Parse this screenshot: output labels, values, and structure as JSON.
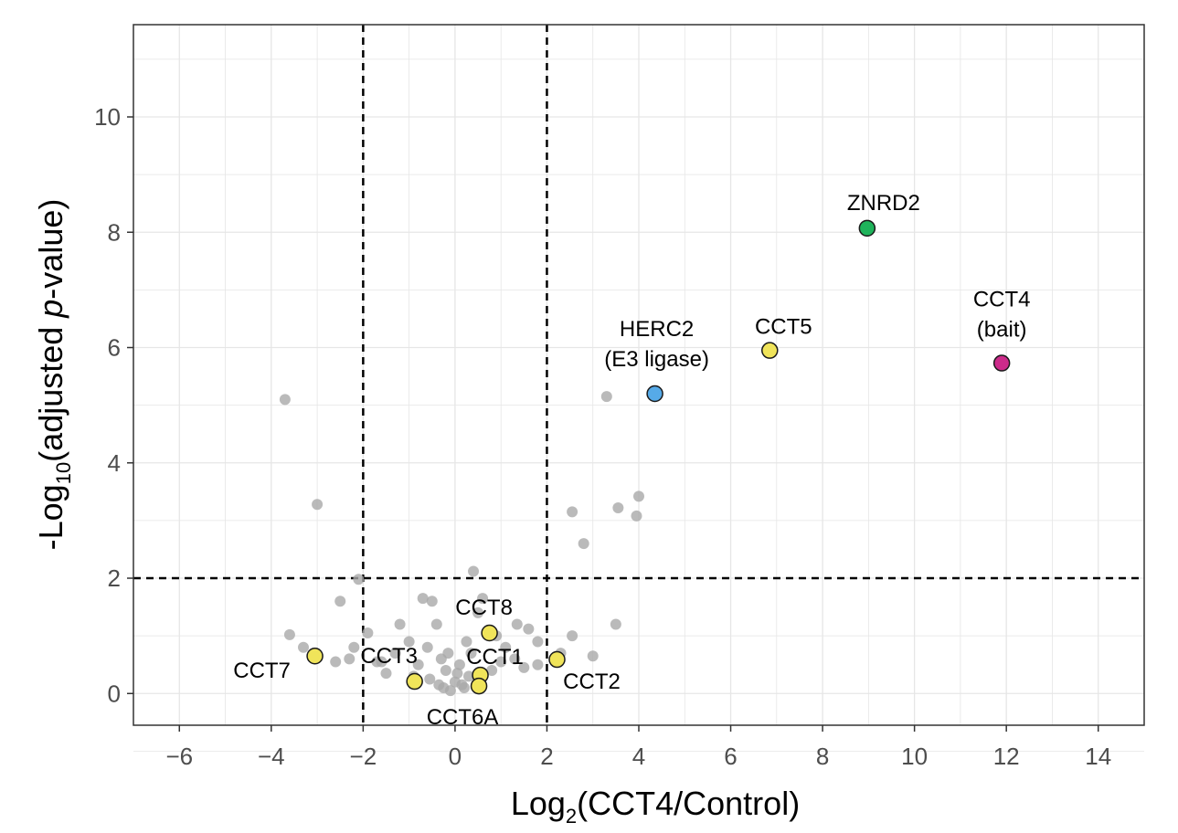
{
  "chart_data": {
    "type": "scatter",
    "title": "",
    "xlabel": {
      "main": "Log",
      "sub": "2",
      "rest": "(CCT4/Control)"
    },
    "ylabel": {
      "pre": "-Log",
      "sub": "10",
      "mid": "(adjusted ",
      "italic": "p",
      "post": "-value)"
    },
    "xlim": [
      -7,
      15
    ],
    "ylim": [
      -0.55,
      11.6
    ],
    "x_ticks": [
      -6,
      -4,
      -2,
      0,
      2,
      4,
      6,
      8,
      10,
      12,
      14
    ],
    "x_tick_labels": [
      "−6",
      "−4",
      "−2",
      "0",
      "2",
      "4",
      "6",
      "8",
      "10",
      "12",
      "14"
    ],
    "y_ticks": [
      0,
      2,
      4,
      6,
      8,
      10
    ],
    "y_tick_labels": [
      "0",
      "2",
      "4",
      "6",
      "8",
      "10"
    ],
    "grid": true,
    "thresholds": {
      "x": [
        -2,
        2
      ],
      "y": [
        2
      ]
    },
    "background_points": [
      [
        -3.7,
        5.1
      ],
      [
        -3.0,
        3.28
      ],
      [
        -2.1,
        1.98
      ],
      [
        -2.5,
        1.6
      ],
      [
        -3.6,
        1.02
      ],
      [
        -3.3,
        0.8
      ],
      [
        -2.2,
        0.8
      ],
      [
        -2.3,
        0.6
      ],
      [
        -1.9,
        1.05
      ],
      [
        -1.7,
        0.55
      ],
      [
        -1.5,
        0.35
      ],
      [
        -1.2,
        1.2
      ],
      [
        -1.0,
        0.9
      ],
      [
        -0.8,
        0.5
      ],
      [
        -0.7,
        1.65
      ],
      [
        -0.5,
        1.6
      ],
      [
        -0.4,
        1.2
      ],
      [
        -0.6,
        0.8
      ],
      [
        -0.3,
        0.6
      ],
      [
        -0.2,
        0.4
      ],
      [
        0.0,
        0.2
      ],
      [
        0.2,
        0.1
      ],
      [
        0.1,
        0.5
      ],
      [
        0.3,
        0.3
      ],
      [
        -0.1,
        0.05
      ],
      [
        0.4,
        2.12
      ],
      [
        0.6,
        1.65
      ],
      [
        0.5,
        1.4
      ],
      [
        0.9,
        1.0
      ],
      [
        1.1,
        0.8
      ],
      [
        1.35,
        1.2
      ],
      [
        1.6,
        1.12
      ],
      [
        1.3,
        0.6
      ],
      [
        1.8,
        0.9
      ],
      [
        1.8,
        0.5
      ],
      [
        1.0,
        0.55
      ],
      [
        0.8,
        0.4
      ],
      [
        -1.3,
        0.7
      ],
      [
        -0.9,
        0.3
      ],
      [
        0.25,
        0.9
      ],
      [
        2.55,
        1.0
      ],
      [
        2.55,
        3.15
      ],
      [
        2.8,
        2.6
      ],
      [
        3.3,
        5.15
      ],
      [
        3.5,
        1.2
      ],
      [
        3.55,
        3.22
      ],
      [
        3.95,
        3.08
      ],
      [
        4.0,
        3.42
      ],
      [
        3.0,
        0.65
      ],
      [
        2.3,
        0.7
      ],
      [
        -0.35,
        0.15
      ],
      [
        0.05,
        0.35
      ],
      [
        -0.15,
        0.7
      ],
      [
        0.35,
        0.7
      ],
      [
        -0.55,
        0.25
      ],
      [
        0.15,
        0.15
      ],
      [
        -0.25,
        0.1
      ],
      [
        1.5,
        0.45
      ],
      [
        -1.6,
        0.55
      ],
      [
        -2.6,
        0.55
      ]
    ],
    "highlight_points": [
      {
        "name": "CCT8",
        "x": 0.75,
        "y": 1.05,
        "color": "#f0e45a"
      },
      {
        "name": "CCT1",
        "x": 0.55,
        "y": 0.32,
        "color": "#f0e45a"
      },
      {
        "name": "CCT6A",
        "x": 0.52,
        "y": 0.13,
        "color": "#f0e45a"
      },
      {
        "name": "CCT3",
        "x": -0.88,
        "y": 0.21,
        "color": "#f0e45a"
      },
      {
        "name": "CCT7",
        "x": -3.05,
        "y": 0.65,
        "color": "#f0e45a"
      },
      {
        "name": "CCT2",
        "x": 2.22,
        "y": 0.59,
        "color": "#f0e45a"
      },
      {
        "name": "HERC2",
        "sublabel": "(E3 ligase)",
        "x": 4.35,
        "y": 5.2,
        "color": "#56aae8"
      },
      {
        "name": "CCT5",
        "x": 6.85,
        "y": 5.95,
        "color": "#f0e45a"
      },
      {
        "name": "ZNRD2",
        "x": 8.97,
        "y": 8.07,
        "color": "#1fb35b"
      },
      {
        "name": "CCT4",
        "sublabel": "(bait)",
        "x": 11.9,
        "y": 5.73,
        "color": "#cc2a8a"
      }
    ],
    "colors": {
      "background_point": "#a9a9a9",
      "grid": "#e6e6e6",
      "threshold": "#000000",
      "highlight_edge": "#1a1a1a"
    }
  }
}
